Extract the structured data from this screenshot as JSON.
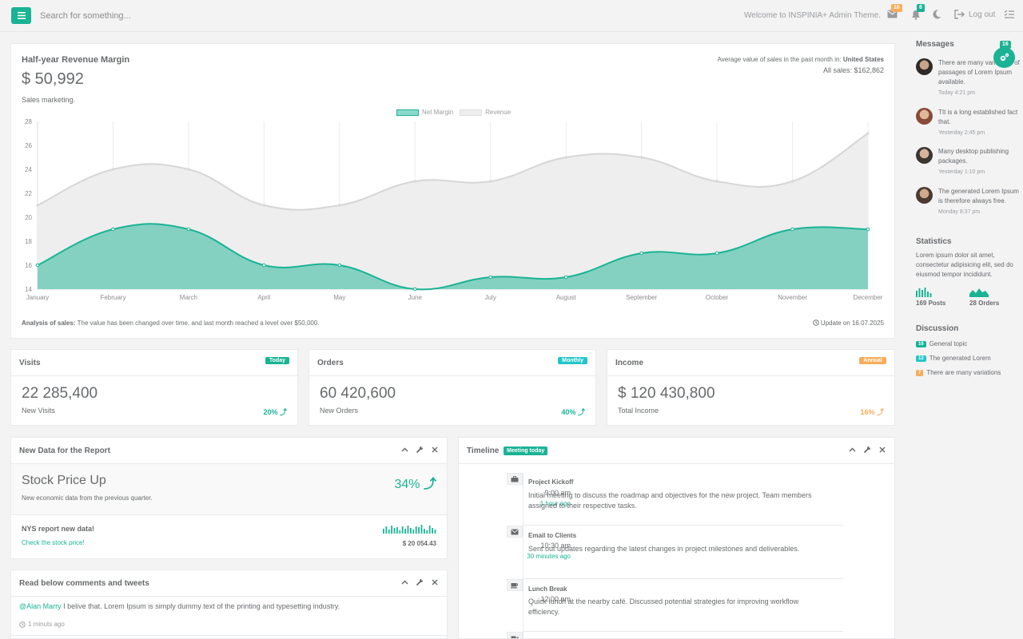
{
  "topbar": {
    "search_placeholder": "Search for something...",
    "welcome": "Welcome to INSPINIA+ Admin Theme.",
    "mail_count": "16",
    "bell_count": "8",
    "logout": "Log out"
  },
  "revenue": {
    "title": "Half-year Revenue Margin",
    "value": "$ 50,992",
    "subtitle": "Sales marketing.",
    "avg_label": "Average value of sales in the past month in: ",
    "avg_region": "United States",
    "all_sales": "All sales: $162,862",
    "analysis_label": "Analysis of sales:",
    "analysis_text": " The value has been changed over time, and last month reached a level over $50,000.",
    "update": "Update on 16.07.2025"
  },
  "chart_data": {
    "type": "area",
    "categories": [
      "January",
      "February",
      "March",
      "April",
      "May",
      "June",
      "July",
      "August",
      "September",
      "October",
      "November",
      "December"
    ],
    "series": [
      {
        "name": "Net Margin",
        "color": "#1ab394",
        "values": [
          16,
          19,
          19,
          16,
          16,
          14,
          15,
          15,
          17,
          17,
          19,
          19
        ]
      },
      {
        "name": "Revenue",
        "color": "#dedede",
        "values": [
          21,
          24,
          24,
          21,
          21,
          23,
          23,
          25,
          25,
          23,
          23,
          27
        ]
      }
    ],
    "ylim": [
      14,
      28
    ],
    "yticks": [
      14,
      16,
      18,
      20,
      22,
      24,
      26,
      28
    ],
    "legend": "top-center",
    "grid": "vertical"
  },
  "stats": [
    {
      "title": "Visits",
      "badge": "Today",
      "badge_color": "#1ab394",
      "value": "22 285,400",
      "sub": "New Visits",
      "pct": "20%",
      "pct_color": "#1ab394"
    },
    {
      "title": "Orders",
      "badge": "Monthly",
      "badge_color": "#23c6c8",
      "value": "60 420,600",
      "sub": "New Orders",
      "pct": "40%",
      "pct_color": "#1ab394"
    },
    {
      "title": "Income",
      "badge": "Annual",
      "badge_color": "#f8ac59",
      "value": "$ 120 430,800",
      "sub": "Total Income",
      "pct": "16%",
      "pct_color": "#f8ac59"
    }
  ],
  "report": {
    "title": "New Data for the Report",
    "stock_title": "Stock Price Up",
    "stock_pct": "34%",
    "stock_text": "New economic data from the previous quarter.",
    "nys_title": "NYS report new data!",
    "nys_link": "Check the stock price!",
    "nys_value": "$ 20 054.43"
  },
  "comments": {
    "title": "Read below comments and tweets",
    "user": "@Alan Marry",
    "text": " I belive that. Lorem Ipsum is simply dummy text of the printing and typesetting industry.",
    "time": "1 minuts ago"
  },
  "timeline": {
    "title": "Timeline",
    "badge": "Meeting today",
    "items": [
      {
        "icon": "briefcase-icon",
        "time": "9:00 am",
        "ago": "1 hour ago",
        "title": "Project Kickoff",
        "text": "Initial meeting to discuss the roadmap and objectives for the new project. Team members assigned to their respective tasks."
      },
      {
        "icon": "envelope-icon",
        "time": "10:30 am",
        "ago": "30 minutes ago",
        "title": "Email to Clients",
        "text": "Sent out updates regarding the latest changes in project milestones and deliverables."
      },
      {
        "icon": "coffee-icon",
        "time": "12:00 pm",
        "ago": "",
        "title": "Lunch Break",
        "text": "Quick lunch at the nearby café. Discussed potential strategies for improving workflow efficiency."
      }
    ]
  },
  "sidebar": {
    "messages_title": "Messages",
    "gear_badge": "16",
    "messages": [
      {
        "text": "There are many variations of passages of Lorem Ipsum available.",
        "time": "Today 4:21 pm"
      },
      {
        "text": "TIt is a long established fact that.",
        "time": "Yesterday 2:45 pm"
      },
      {
        "text": "Many desktop publishing packages.",
        "time": "Yesterday 1:10 pm"
      },
      {
        "text": "The generated Lorem Ipsum is therefore always free.",
        "time": "Monday 8:37 pm"
      }
    ],
    "statistics_title": "Statistics",
    "statistics_text": "Lorem ipsum dolor sit amet, consectetur adipisicing elit, sed do eiusmod tempor incididunt.",
    "posts": "169 Posts",
    "orders": "28 Orders",
    "discussion_title": "Discussion",
    "discussion": [
      {
        "count": "16",
        "color": "#1ab394",
        "label": "General topic"
      },
      {
        "count": "12",
        "color": "#23c6c8",
        "label": "The generated Lorem"
      },
      {
        "count": "7",
        "color": "#f8ac59",
        "label": "There are many variations"
      }
    ]
  }
}
